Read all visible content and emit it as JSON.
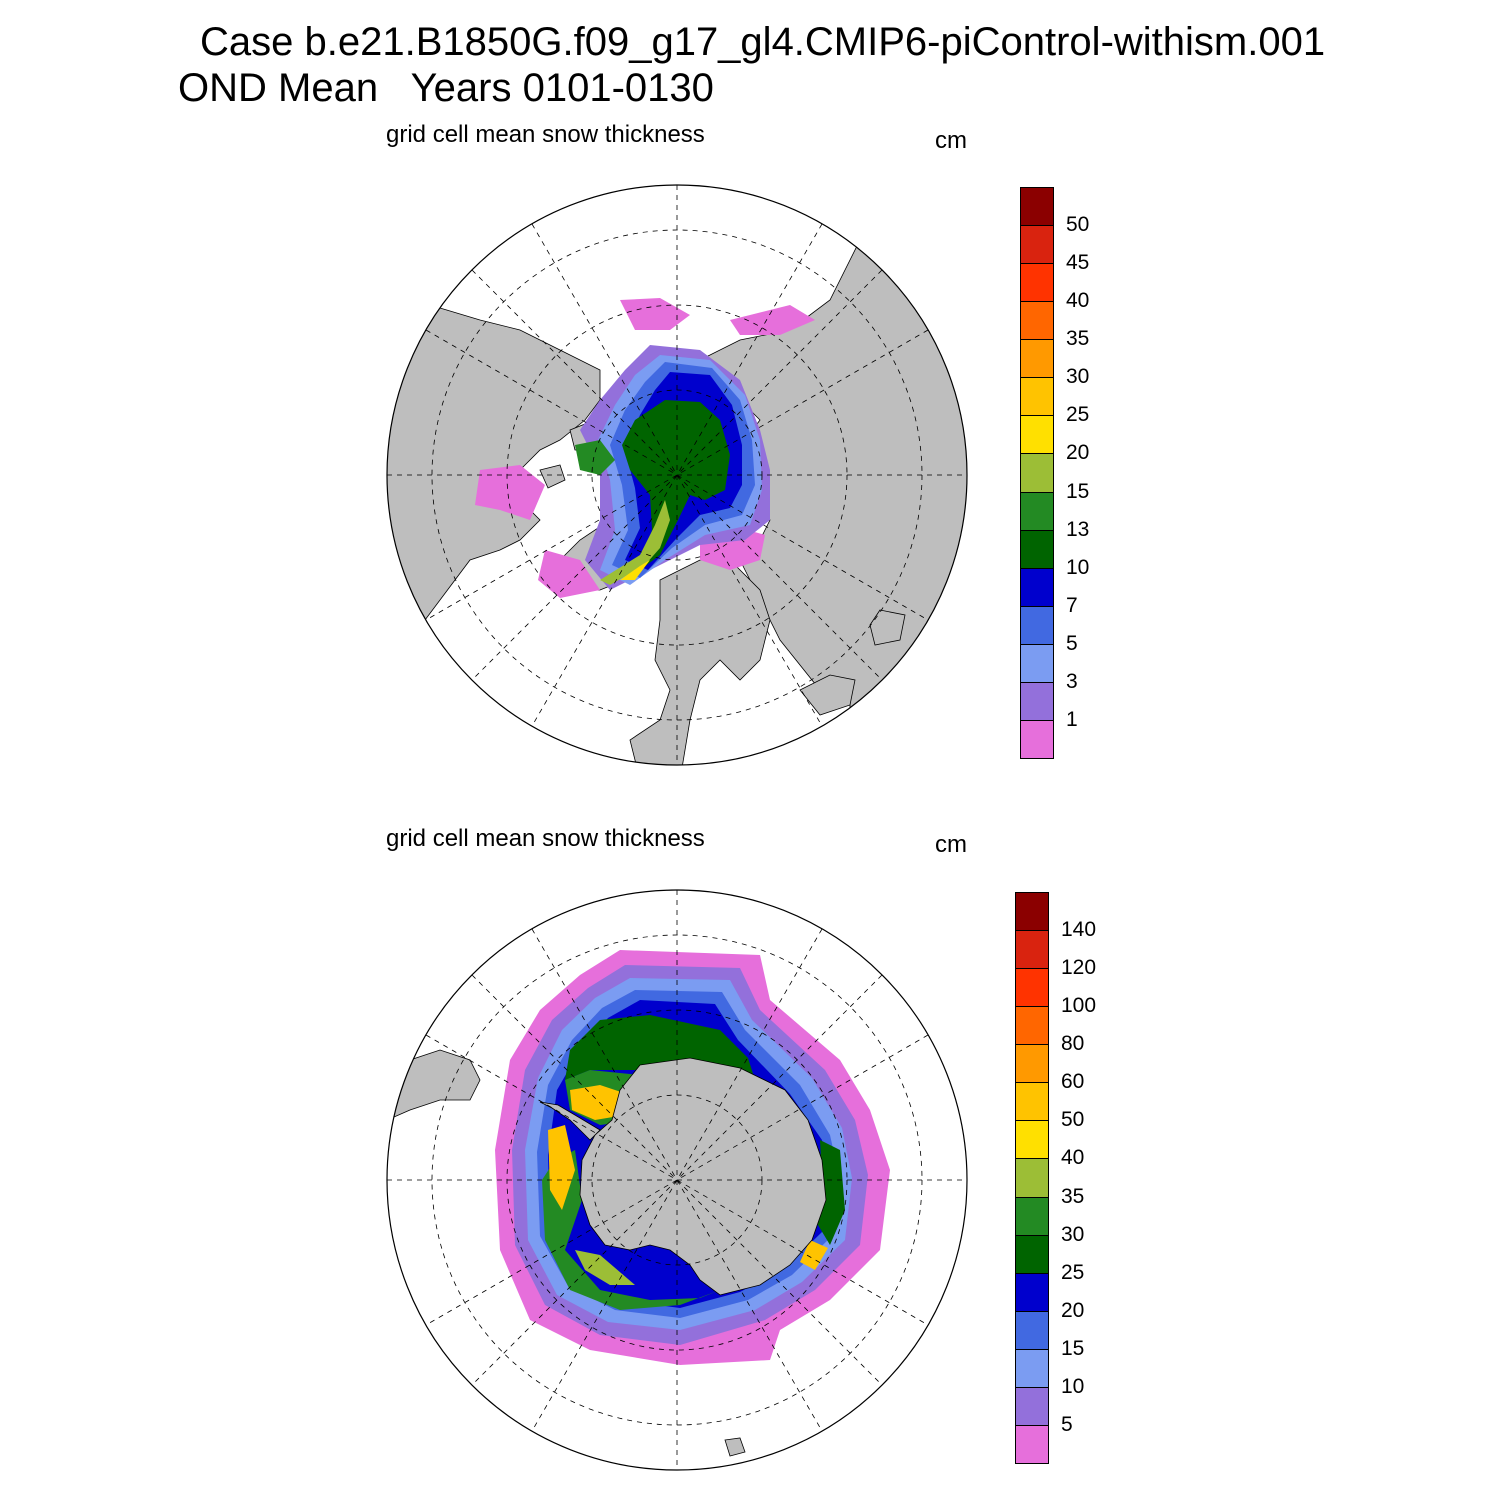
{
  "header": {
    "case_line": "Case b.e21.B1850G.f09_g17_gl4.CMIP6-piControl-withism.001",
    "period_line": "OND Mean   Years 0101-0130"
  },
  "panels": [
    {
      "id": "north",
      "title": "grid cell mean snow thickness",
      "units": "cm",
      "levels": [
        "50",
        "45",
        "40",
        "35",
        "30",
        "25",
        "20",
        "15",
        "13",
        "10",
        "7",
        "5",
        "3",
        "1"
      ],
      "colors": [
        "#8b0000",
        "#d9230f",
        "#ff3300",
        "#ff6600",
        "#ff9900",
        "#ffc300",
        "#ffe000",
        "#9cbe36",
        "#238a23",
        "#006400",
        "#0000cd",
        "#4169e1",
        "#7b9cf2",
        "#9370db",
        "#e66fdb"
      ]
    },
    {
      "id": "south",
      "title": "grid cell mean snow thickness",
      "units": "cm",
      "levels": [
        "140",
        "120",
        "100",
        "80",
        "60",
        "50",
        "40",
        "35",
        "30",
        "25",
        "20",
        "15",
        "10",
        "5"
      ],
      "colors": [
        "#8b0000",
        "#d9230f",
        "#ff3300",
        "#ff6600",
        "#ff9900",
        "#ffc300",
        "#ffe000",
        "#9cbe36",
        "#238a23",
        "#006400",
        "#0000cd",
        "#4169e1",
        "#7b9cf2",
        "#9370db",
        "#e66fdb"
      ]
    }
  ],
  "map_colors": {
    "land": "#bebebe",
    "ocean": "#ffffff",
    "grid": "#000000"
  }
}
